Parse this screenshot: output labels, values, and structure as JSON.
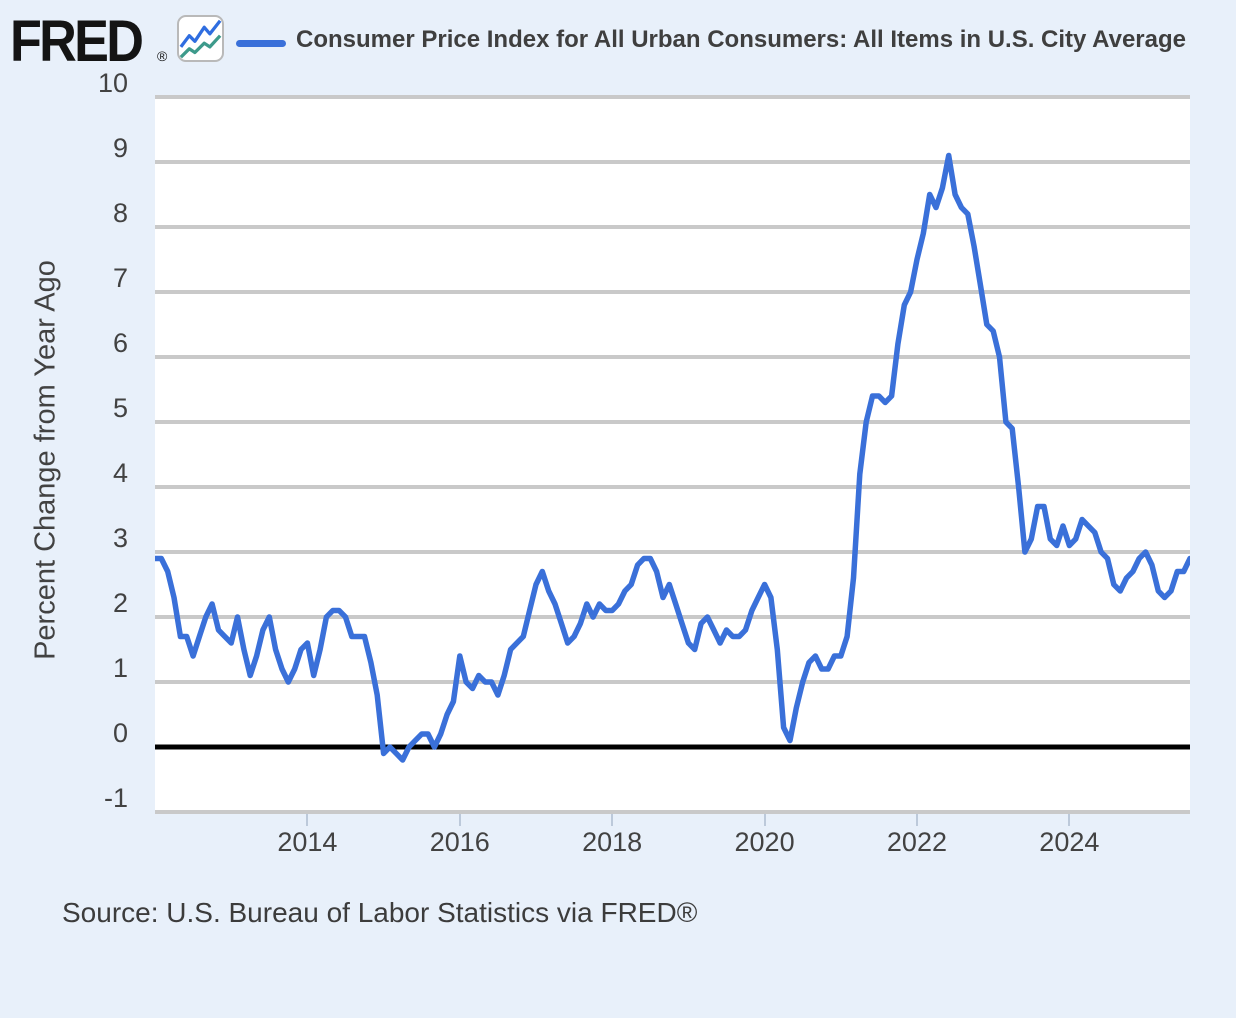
{
  "header": {
    "logo_text": "FRED",
    "registered_mark": "®",
    "series_title": "Consumer Price Index for All Urban Consumers: All Items in U.S. City Average"
  },
  "source": {
    "text": "Source: U.S. Bureau of Labor Statistics via FRED®"
  },
  "colors": {
    "page_background": "#e8f0fa",
    "plot_background": "#ffffff",
    "gridline": "#c9c9c9",
    "zero_line": "#000000",
    "series_line": "#3a70d9",
    "text": "#424242",
    "tick_mark": "#bcc9da"
  },
  "chart_data": {
    "type": "line",
    "title": "Consumer Price Index for All Urban Consumers: All Items in U.S. City Average",
    "xlabel": "",
    "ylabel": "Percent Change from Year Ago",
    "frequency": "monthly",
    "x_start": "2012-01",
    "x_end": "2025-08",
    "ylim": [
      -1,
      10
    ],
    "grid": true,
    "zero_line": true,
    "legend_position": "top",
    "y_ticks": [
      10,
      9,
      8,
      7,
      6,
      5,
      4,
      3,
      2,
      1,
      0,
      -1
    ],
    "x_ticks": [
      2014,
      2016,
      2018,
      2020,
      2022,
      2024
    ],
    "series": [
      {
        "name": "Consumer Price Index for All Urban Consumers: All Items in U.S. City Average",
        "color": "#3a70d9",
        "values": [
          2.9,
          2.9,
          2.7,
          2.3,
          1.7,
          1.7,
          1.4,
          1.7,
          2.0,
          2.2,
          1.8,
          1.7,
          1.6,
          2.0,
          1.5,
          1.1,
          1.4,
          1.8,
          2.0,
          1.5,
          1.2,
          1.0,
          1.2,
          1.5,
          1.6,
          1.1,
          1.5,
          2.0,
          2.1,
          2.1,
          2.0,
          1.7,
          1.7,
          1.7,
          1.3,
          0.8,
          -0.1,
          0.0,
          -0.1,
          -0.2,
          0.0,
          0.1,
          0.2,
          0.2,
          0.0,
          0.2,
          0.5,
          0.7,
          1.4,
          1.0,
          0.9,
          1.1,
          1.0,
          1.0,
          0.8,
          1.1,
          1.5,
          1.6,
          1.7,
          2.1,
          2.5,
          2.7,
          2.4,
          2.2,
          1.9,
          1.6,
          1.7,
          1.9,
          2.2,
          2.0,
          2.2,
          2.1,
          2.1,
          2.2,
          2.4,
          2.5,
          2.8,
          2.9,
          2.9,
          2.7,
          2.3,
          2.5,
          2.2,
          1.9,
          1.6,
          1.5,
          1.9,
          2.0,
          1.8,
          1.6,
          1.8,
          1.7,
          1.7,
          1.8,
          2.1,
          2.3,
          2.5,
          2.3,
          1.5,
          0.3,
          0.1,
          0.6,
          1.0,
          1.3,
          1.4,
          1.2,
          1.2,
          1.4,
          1.4,
          1.7,
          2.6,
          4.2,
          5.0,
          5.4,
          5.4,
          5.3,
          5.4,
          6.2,
          6.8,
          7.0,
          7.5,
          7.9,
          8.5,
          8.3,
          8.6,
          9.1,
          8.5,
          8.3,
          8.2,
          7.7,
          7.1,
          6.5,
          6.4,
          6.0,
          5.0,
          4.9,
          4.0,
          3.0,
          3.2,
          3.7,
          3.7,
          3.2,
          3.1,
          3.4,
          3.1,
          3.2,
          3.5,
          3.4,
          3.3,
          3.0,
          2.9,
          2.5,
          2.4,
          2.6,
          2.7,
          2.9,
          3.0,
          2.8,
          2.4,
          2.3,
          2.4,
          2.7,
          2.7,
          2.9
        ]
      }
    ]
  }
}
